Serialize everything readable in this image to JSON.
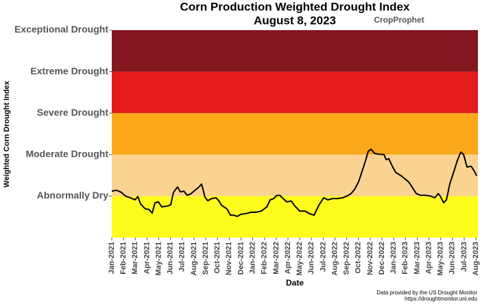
{
  "chart_data": {
    "type": "line",
    "title": "Corn Production Weighted Drought Index",
    "subtitle": "August 8, 2023",
    "logo": "CropProphet",
    "xlabel": "Date",
    "ylabel": "Weighted Corn Drought Index",
    "source": [
      "Data provided by the US Drought Monitor",
      "https://droughtmonitor.unl.edu"
    ],
    "ylim": [
      0,
      5
    ],
    "yticks": [
      {
        "value": 1,
        "label": "Abnormally Dry"
      },
      {
        "value": 2,
        "label": "Moderate Drought"
      },
      {
        "value": 3,
        "label": "Severe Drought"
      },
      {
        "value": 4,
        "label": "Extreme Drought"
      },
      {
        "value": 5,
        "label": "Exceptional Drought"
      }
    ],
    "band_colors": [
      "#fdfc1c",
      "#f9d38f",
      "#fba919",
      "#e41b1b",
      "#831720"
    ],
    "xlim": [
      0,
      31.17
    ],
    "xticks": [
      {
        "value": 0,
        "label": "Jan-2021"
      },
      {
        "value": 1,
        "label": "Feb-2021"
      },
      {
        "value": 2,
        "label": "Mar-2021"
      },
      {
        "value": 3,
        "label": "Apr-2021"
      },
      {
        "value": 4,
        "label": "May-2021"
      },
      {
        "value": 5,
        "label": "Jun-2021"
      },
      {
        "value": 6,
        "label": "Jul-2021"
      },
      {
        "value": 7,
        "label": "Aug-2021"
      },
      {
        "value": 8,
        "label": "Sep-2021"
      },
      {
        "value": 9,
        "label": "Oct-2021"
      },
      {
        "value": 10,
        "label": "Nov-2021"
      },
      {
        "value": 11,
        "label": "Dec-2021"
      },
      {
        "value": 12,
        "label": "Jan-2022"
      },
      {
        "value": 13,
        "label": "Feb-2022"
      },
      {
        "value": 14,
        "label": "Mar-2022"
      },
      {
        "value": 15,
        "label": "Apr-2022"
      },
      {
        "value": 16,
        "label": "May-2022"
      },
      {
        "value": 17,
        "label": "Jun-2022"
      },
      {
        "value": 18,
        "label": "Jul-2022"
      },
      {
        "value": 19,
        "label": "Aug-2022"
      },
      {
        "value": 20,
        "label": "Sep-2022"
      },
      {
        "value": 21,
        "label": "Oct-2022"
      },
      {
        "value": 22,
        "label": "Nov-2022"
      },
      {
        "value": 23,
        "label": "Dec-2022"
      },
      {
        "value": 24,
        "label": "Jan-2023"
      },
      {
        "value": 25,
        "label": "Feb-2023"
      },
      {
        "value": 26,
        "label": "Mar-2023"
      },
      {
        "value": 27,
        "label": "Apr-2023"
      },
      {
        "value": 28,
        "label": "May-2023"
      },
      {
        "value": 29,
        "label": "Jun-2023"
      },
      {
        "value": 30,
        "label": "Jul-2023"
      },
      {
        "value": 31,
        "label": "Aug-2023"
      }
    ],
    "color": "#000000",
    "x": [
      0,
      0.41,
      0.82,
      1.17,
      1.58,
      1.98,
      2.22,
      2.45,
      2.86,
      3.15,
      3.44,
      3.68,
      3.97,
      4.26,
      4.73,
      5.02,
      5.25,
      5.6,
      5.84,
      6.13,
      6.42,
      6.71,
      7.0,
      7.35,
      7.65,
      7.94,
      8.17,
      8.52,
      8.87,
      9.11,
      9.34,
      9.81,
      10.1,
      10.39,
      10.68,
      10.97,
      11.44,
      11.85,
      12.26,
      12.73,
      13.2,
      13.49,
      13.78,
      14.01,
      14.3,
      14.59,
      14.89,
      15.29,
      15.59,
      15.99,
      16.46,
      16.81,
      17.22,
      17.63,
      18.04,
      18.39,
      18.8,
      19.21,
      19.67,
      20.08,
      20.37,
      20.67,
      21.02,
      21.31,
      21.6,
      21.83,
      22.07,
      22.36,
      22.71,
      23.18,
      23.35,
      23.58,
      23.88,
      24.17,
      24.4,
      24.64,
      24.93,
      25.28,
      25.63,
      25.92,
      26.27,
      26.68,
      27.15,
      27.5,
      27.79,
      27.96,
      28.25,
      28.49,
      28.78,
      29.13,
      29.42,
      29.71,
      29.95,
      30.24,
      30.59,
      30.82,
      31.06
    ],
    "values": [
      1.12,
      1.14,
      1.09,
      1.0,
      0.96,
      0.91,
      0.99,
      0.81,
      0.69,
      0.68,
      0.59,
      0.84,
      0.86,
      0.74,
      0.76,
      0.79,
      1.09,
      1.22,
      1.1,
      1.12,
      1.02,
      1.05,
      1.12,
      1.2,
      1.29,
      0.97,
      0.89,
      0.94,
      0.96,
      0.89,
      0.78,
      0.69,
      0.54,
      0.54,
      0.51,
      0.56,
      0.58,
      0.61,
      0.61,
      0.64,
      0.74,
      0.91,
      0.94,
      1.01,
      1.02,
      0.94,
      0.86,
      0.88,
      0.76,
      0.64,
      0.64,
      0.58,
      0.54,
      0.78,
      0.96,
      0.91,
      0.94,
      0.94,
      0.96,
      1.01,
      1.06,
      1.16,
      1.35,
      1.6,
      1.85,
      2.08,
      2.13,
      2.03,
      2.01,
      2.0,
      1.88,
      1.9,
      1.72,
      1.57,
      1.53,
      1.49,
      1.42,
      1.34,
      1.19,
      1.06,
      1.02,
      1.02,
      1.0,
      0.96,
      1.06,
      1.0,
      0.84,
      0.91,
      1.3,
      1.6,
      1.86,
      2.06,
      2.0,
      1.7,
      1.72,
      1.62,
      1.49
    ]
  }
}
